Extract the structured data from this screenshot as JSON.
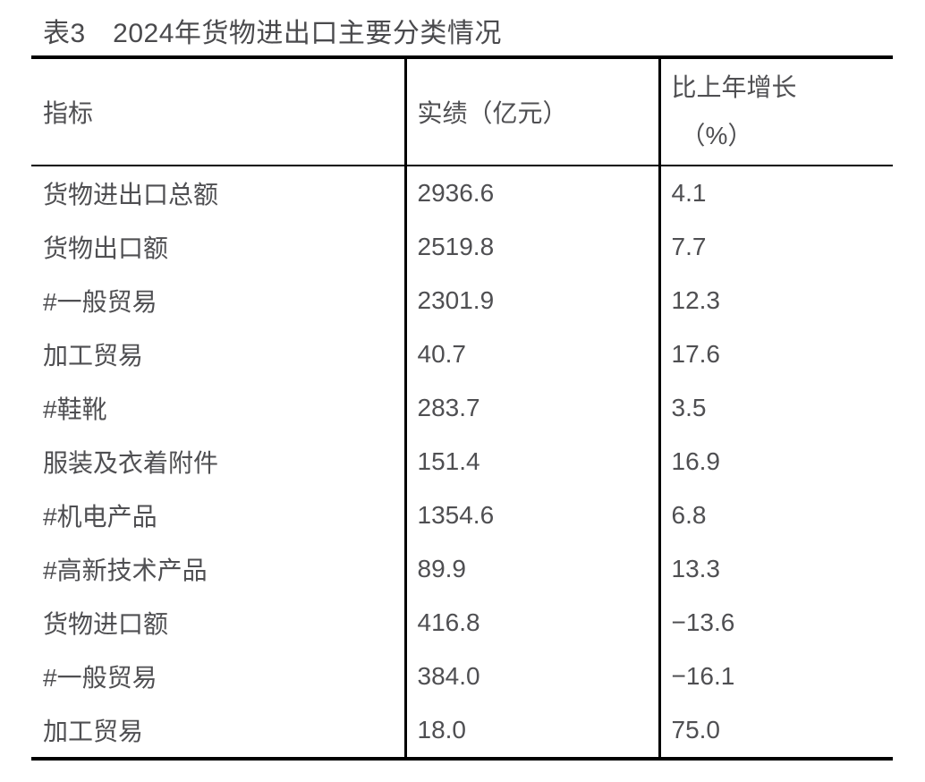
{
  "page": {
    "background_color": "#ffffff",
    "text_color": "#4f4f52",
    "border_color": "#000000"
  },
  "title": "表3　2024年货物进出口主要分类情况",
  "table": {
    "columns": [
      {
        "label": "指标"
      },
      {
        "label": "实绩（亿元）"
      },
      {
        "label_line1": "比上年增长",
        "label_line2": "（%）"
      }
    ],
    "rows": [
      {
        "indicator": "货物进出口总额",
        "value": "2936.6",
        "growth": "4.1"
      },
      {
        "indicator": "货物出口额",
        "value": "2519.8",
        "growth": "7.7"
      },
      {
        "indicator": "#一般贸易",
        "value": "2301.9",
        "growth": "12.3"
      },
      {
        "indicator": "加工贸易",
        "value": "40.7",
        "growth": "17.6"
      },
      {
        "indicator": "#鞋靴",
        "value": "283.7",
        "growth": "3.5"
      },
      {
        "indicator": "服装及衣着附件",
        "value": "151.4",
        "growth": "16.9"
      },
      {
        "indicator": "#机电产品",
        "value": "1354.6",
        "growth": "6.8"
      },
      {
        "indicator": "#高新技术产品",
        "value": "89.9",
        "growth": "13.3"
      },
      {
        "indicator": "货物进口额",
        "value": "416.8",
        "growth": "−13.6"
      },
      {
        "indicator": "#一般贸易",
        "value": "384.0",
        "growth": "−16.1"
      },
      {
        "indicator": "加工贸易",
        "value": "18.0",
        "growth": "75.0"
      }
    ]
  }
}
